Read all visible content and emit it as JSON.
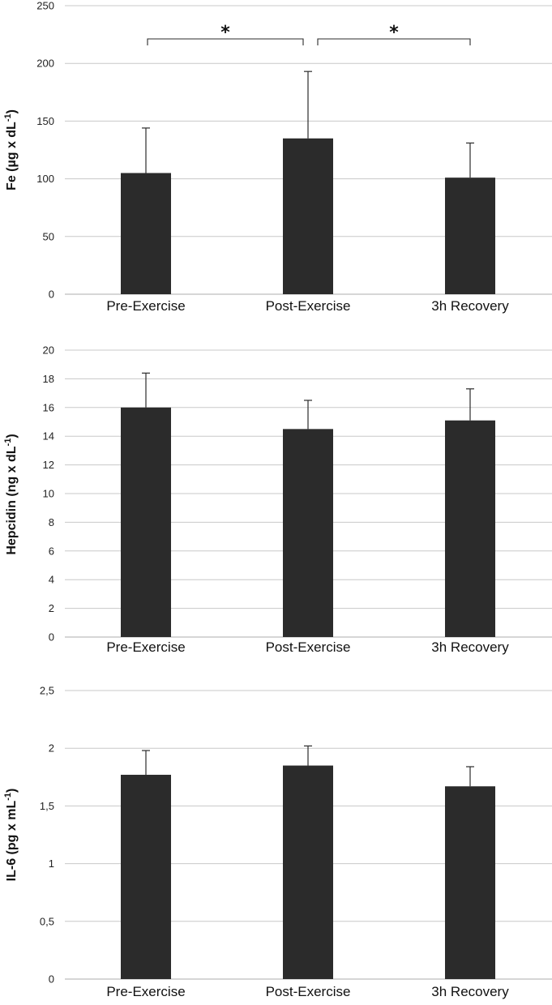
{
  "chart_data": [
    {
      "type": "bar",
      "categories": [
        "Pre-Exercise",
        "Post-Exercise",
        "3h Recovery"
      ],
      "values": [
        105,
        135,
        101
      ],
      "errors": [
        39,
        58,
        30
      ],
      "ylabel": {
        "prefix": "Fe (µg x dL",
        "sup": "-1",
        "suffix": ")"
      },
      "ylim": [
        0,
        250
      ],
      "yticks": [
        0,
        50,
        100,
        150,
        200,
        250
      ],
      "ytick_labels": [
        "0",
        "50",
        "100",
        "150",
        "200",
        "250"
      ],
      "grid": true,
      "significance": [
        {
          "from": "Pre-Exercise",
          "to": "Post-Exercise",
          "label": "*"
        },
        {
          "from": "Post-Exercise",
          "to": "3h Recovery",
          "label": "*"
        }
      ]
    },
    {
      "type": "bar",
      "categories": [
        "Pre-Exercise",
        "Post-Exercise",
        "3h Recovery"
      ],
      "values": [
        16.0,
        14.5,
        15.1
      ],
      "errors": [
        2.4,
        2.0,
        2.2
      ],
      "ylabel": {
        "prefix": "Hepcidin (ng x dL",
        "sup": "-1",
        "suffix": ")"
      },
      "ylim": [
        0,
        20
      ],
      "yticks": [
        0,
        2,
        4,
        6,
        8,
        10,
        12,
        14,
        16,
        18,
        20
      ],
      "ytick_labels": [
        "0",
        "2",
        "4",
        "6",
        "8",
        "10",
        "12",
        "14",
        "16",
        "18",
        "20"
      ],
      "grid": true,
      "significance": []
    },
    {
      "type": "bar",
      "categories": [
        "Pre-Exercise",
        "Post-Exercise",
        "3h Recovery"
      ],
      "values": [
        1.77,
        1.85,
        1.67
      ],
      "errors": [
        0.21,
        0.17,
        0.17
      ],
      "ylabel": {
        "prefix": "IL-6 (pg x mL",
        "sup": "-1",
        "suffix": ")"
      },
      "ylim": [
        0,
        2.5
      ],
      "yticks": [
        0,
        0.5,
        1,
        1.5,
        2,
        2.5
      ],
      "ytick_labels": [
        "0",
        "0,5",
        "1",
        "1,5",
        "2",
        "2,5"
      ],
      "grid": true,
      "significance": []
    }
  ]
}
